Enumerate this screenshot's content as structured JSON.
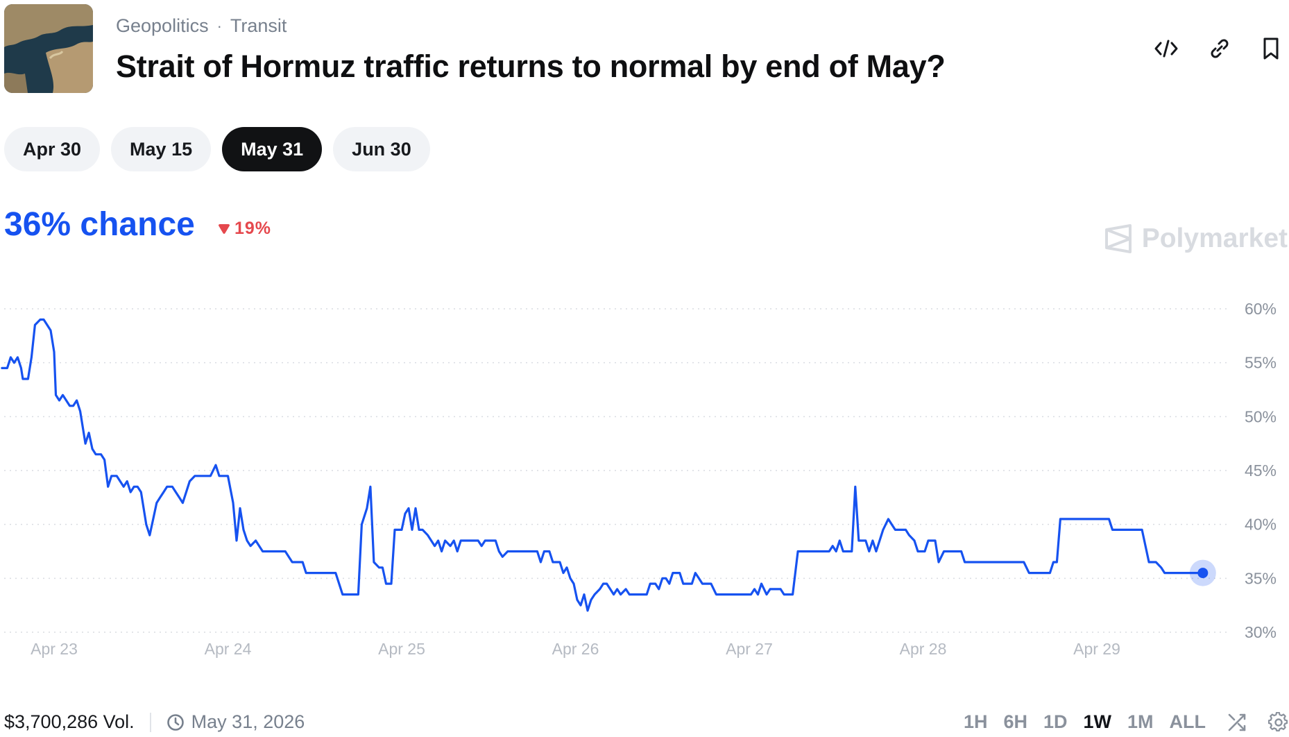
{
  "breadcrumbs": [
    "Geopolitics",
    "Transit"
  ],
  "title": "Strait of Hormuz traffic returns to normal by end of May?",
  "header_icons": [
    "embed-code-icon",
    "link-icon",
    "bookmark-icon"
  ],
  "date_tabs": [
    {
      "label": "Apr 30",
      "active": false
    },
    {
      "label": "May 15",
      "active": false
    },
    {
      "label": "May 31",
      "active": true
    },
    {
      "label": "Jun 30",
      "active": false
    }
  ],
  "chance": {
    "value": "36% chance",
    "delta": "19%",
    "delta_direction": "down"
  },
  "brand": "Polymarket",
  "colors": {
    "accent": "#1652f0",
    "negative": "#e5484d",
    "active_pill": "#111214",
    "pill": "#f1f3f6"
  },
  "chart_data": {
    "type": "line",
    "y_ticks": [
      "60%",
      "55%",
      "50%",
      "45%",
      "40%",
      "35%",
      "30%"
    ],
    "ylim": [
      30,
      60
    ],
    "x_ticks": [
      "Apr 23",
      "Apr 24",
      "Apr 25",
      "Apr 26",
      "Apr 27",
      "Apr 28",
      "Apr 29"
    ],
    "xlim": [
      0,
      7.13
    ],
    "grid": true,
    "series": [
      {
        "color": "#1652f0",
        "points": [
          [
            0.0,
            54.5
          ],
          [
            0.03,
            54.5
          ],
          [
            0.05,
            55.5
          ],
          [
            0.07,
            55.0
          ],
          [
            0.09,
            55.5
          ],
          [
            0.11,
            54.5
          ],
          [
            0.12,
            53.5
          ],
          [
            0.15,
            53.5
          ],
          [
            0.17,
            55.5
          ],
          [
            0.19,
            58.5
          ],
          [
            0.22,
            59.0
          ],
          [
            0.24,
            59.0
          ],
          [
            0.26,
            58.5
          ],
          [
            0.28,
            58.0
          ],
          [
            0.3,
            56.0
          ],
          [
            0.31,
            52.0
          ],
          [
            0.33,
            51.5
          ],
          [
            0.35,
            52.0
          ],
          [
            0.37,
            51.5
          ],
          [
            0.39,
            51.0
          ],
          [
            0.41,
            51.0
          ],
          [
            0.43,
            51.5
          ],
          [
            0.45,
            50.5
          ],
          [
            0.46,
            49.5
          ],
          [
            0.48,
            47.5
          ],
          [
            0.5,
            48.5
          ],
          [
            0.52,
            47.0
          ],
          [
            0.54,
            46.5
          ],
          [
            0.57,
            46.5
          ],
          [
            0.59,
            46.0
          ],
          [
            0.61,
            43.5
          ],
          [
            0.63,
            44.5
          ],
          [
            0.66,
            44.5
          ],
          [
            0.68,
            44.0
          ],
          [
            0.7,
            43.5
          ],
          [
            0.72,
            44.0
          ],
          [
            0.74,
            43.0
          ],
          [
            0.76,
            43.5
          ],
          [
            0.78,
            43.5
          ],
          [
            0.8,
            43.0
          ],
          [
            0.83,
            40.0
          ],
          [
            0.85,
            39.0
          ],
          [
            0.87,
            40.5
          ],
          [
            0.89,
            42.0
          ],
          [
            0.91,
            42.5
          ],
          [
            0.93,
            43.0
          ],
          [
            0.95,
            43.5
          ],
          [
            0.98,
            43.5
          ],
          [
            1.0,
            43.0
          ],
          [
            1.02,
            42.5
          ],
          [
            1.04,
            42.0
          ],
          [
            1.06,
            43.0
          ],
          [
            1.08,
            44.0
          ],
          [
            1.11,
            44.5
          ],
          [
            1.2,
            44.5
          ],
          [
            1.23,
            45.5
          ],
          [
            1.25,
            44.5
          ],
          [
            1.3,
            44.5
          ],
          [
            1.33,
            42.0
          ],
          [
            1.35,
            38.5
          ],
          [
            1.37,
            41.5
          ],
          [
            1.39,
            39.5
          ],
          [
            1.41,
            38.5
          ],
          [
            1.43,
            38.0
          ],
          [
            1.46,
            38.5
          ],
          [
            1.48,
            38.0
          ],
          [
            1.5,
            37.5
          ],
          [
            1.63,
            37.5
          ],
          [
            1.67,
            36.5
          ],
          [
            1.73,
            36.5
          ],
          [
            1.75,
            35.5
          ],
          [
            1.92,
            35.5
          ],
          [
            1.96,
            33.5
          ],
          [
            2.05,
            33.5
          ],
          [
            2.07,
            40.0
          ],
          [
            2.1,
            41.5
          ],
          [
            2.12,
            43.5
          ],
          [
            2.14,
            36.5
          ],
          [
            2.17,
            36.0
          ],
          [
            2.19,
            36.0
          ],
          [
            2.21,
            34.5
          ],
          [
            2.24,
            34.5
          ],
          [
            2.26,
            39.5
          ],
          [
            2.3,
            39.5
          ],
          [
            2.32,
            41.0
          ],
          [
            2.34,
            41.5
          ],
          [
            2.36,
            39.5
          ],
          [
            2.38,
            41.5
          ],
          [
            2.4,
            39.5
          ],
          [
            2.42,
            39.5
          ],
          [
            2.45,
            39.0
          ],
          [
            2.47,
            38.5
          ],
          [
            2.49,
            38.0
          ],
          [
            2.51,
            38.5
          ],
          [
            2.53,
            37.5
          ],
          [
            2.55,
            38.5
          ],
          [
            2.58,
            38.0
          ],
          [
            2.6,
            38.5
          ],
          [
            2.62,
            37.5
          ],
          [
            2.64,
            38.5
          ],
          [
            2.66,
            38.5
          ],
          [
            2.74,
            38.5
          ],
          [
            2.76,
            38.0
          ],
          [
            2.78,
            38.5
          ],
          [
            2.84,
            38.5
          ],
          [
            2.86,
            37.5
          ],
          [
            2.88,
            37.0
          ],
          [
            2.91,
            37.5
          ],
          [
            3.08,
            37.5
          ],
          [
            3.1,
            36.5
          ],
          [
            3.12,
            37.5
          ],
          [
            3.15,
            37.5
          ],
          [
            3.17,
            36.5
          ],
          [
            3.21,
            36.5
          ],
          [
            3.23,
            35.5
          ],
          [
            3.25,
            36.0
          ],
          [
            3.27,
            35.0
          ],
          [
            3.29,
            34.5
          ],
          [
            3.31,
            33.0
          ],
          [
            3.33,
            32.5
          ],
          [
            3.35,
            33.5
          ],
          [
            3.37,
            32.0
          ],
          [
            3.39,
            33.0
          ],
          [
            3.41,
            33.5
          ],
          [
            3.44,
            34.0
          ],
          [
            3.46,
            34.5
          ],
          [
            3.48,
            34.5
          ],
          [
            3.5,
            34.0
          ],
          [
            3.52,
            33.5
          ],
          [
            3.54,
            34.0
          ],
          [
            3.56,
            33.5
          ],
          [
            3.59,
            34.0
          ],
          [
            3.61,
            33.5
          ],
          [
            3.71,
            33.5
          ],
          [
            3.73,
            34.5
          ],
          [
            3.76,
            34.5
          ],
          [
            3.78,
            34.0
          ],
          [
            3.8,
            35.0
          ],
          [
            3.82,
            35.0
          ],
          [
            3.84,
            34.5
          ],
          [
            3.86,
            35.5
          ],
          [
            3.9,
            35.5
          ],
          [
            3.92,
            34.5
          ],
          [
            3.97,
            34.5
          ],
          [
            3.99,
            35.5
          ],
          [
            4.01,
            35.0
          ],
          [
            4.03,
            34.5
          ],
          [
            4.08,
            34.5
          ],
          [
            4.11,
            33.5
          ],
          [
            4.31,
            33.5
          ],
          [
            4.33,
            34.0
          ],
          [
            4.35,
            33.5
          ],
          [
            4.37,
            34.5
          ],
          [
            4.4,
            33.5
          ],
          [
            4.42,
            34.0
          ],
          [
            4.48,
            34.0
          ],
          [
            4.5,
            33.5
          ],
          [
            4.55,
            33.5
          ],
          [
            4.58,
            37.5
          ],
          [
            4.76,
            37.5
          ],
          [
            4.78,
            38.0
          ],
          [
            4.8,
            37.5
          ],
          [
            4.82,
            38.5
          ],
          [
            4.84,
            37.5
          ],
          [
            4.89,
            37.5
          ],
          [
            4.91,
            43.5
          ],
          [
            4.93,
            38.5
          ],
          [
            4.97,
            38.5
          ],
          [
            4.99,
            37.5
          ],
          [
            5.01,
            38.5
          ],
          [
            5.03,
            37.5
          ],
          [
            5.05,
            38.5
          ],
          [
            5.07,
            39.5
          ],
          [
            5.1,
            40.5
          ],
          [
            5.12,
            40.0
          ],
          [
            5.14,
            39.5
          ],
          [
            5.2,
            39.5
          ],
          [
            5.22,
            39.0
          ],
          [
            5.25,
            38.5
          ],
          [
            5.27,
            37.5
          ],
          [
            5.31,
            37.5
          ],
          [
            5.33,
            38.5
          ],
          [
            5.37,
            38.5
          ],
          [
            5.39,
            36.5
          ],
          [
            5.42,
            37.5
          ],
          [
            5.52,
            37.5
          ],
          [
            5.54,
            36.5
          ],
          [
            5.88,
            36.5
          ],
          [
            5.91,
            35.5
          ],
          [
            6.03,
            35.5
          ],
          [
            6.05,
            36.5
          ],
          [
            6.07,
            36.5
          ],
          [
            6.09,
            40.5
          ],
          [
            6.37,
            40.5
          ],
          [
            6.39,
            39.5
          ],
          [
            6.56,
            39.5
          ],
          [
            6.58,
            38.0
          ],
          [
            6.6,
            36.5
          ],
          [
            6.64,
            36.5
          ],
          [
            6.67,
            36.0
          ],
          [
            6.69,
            35.5
          ],
          [
            6.91,
            35.5
          ]
        ]
      }
    ]
  },
  "footer": {
    "volume": "$3,700,286 Vol.",
    "end_date": "May 31, 2026",
    "ranges": [
      {
        "label": "1H",
        "active": false
      },
      {
        "label": "6H",
        "active": false
      },
      {
        "label": "1D",
        "active": false
      },
      {
        "label": "1W",
        "active": true
      },
      {
        "label": "1M",
        "active": false
      },
      {
        "label": "ALL",
        "active": false
      }
    ]
  }
}
